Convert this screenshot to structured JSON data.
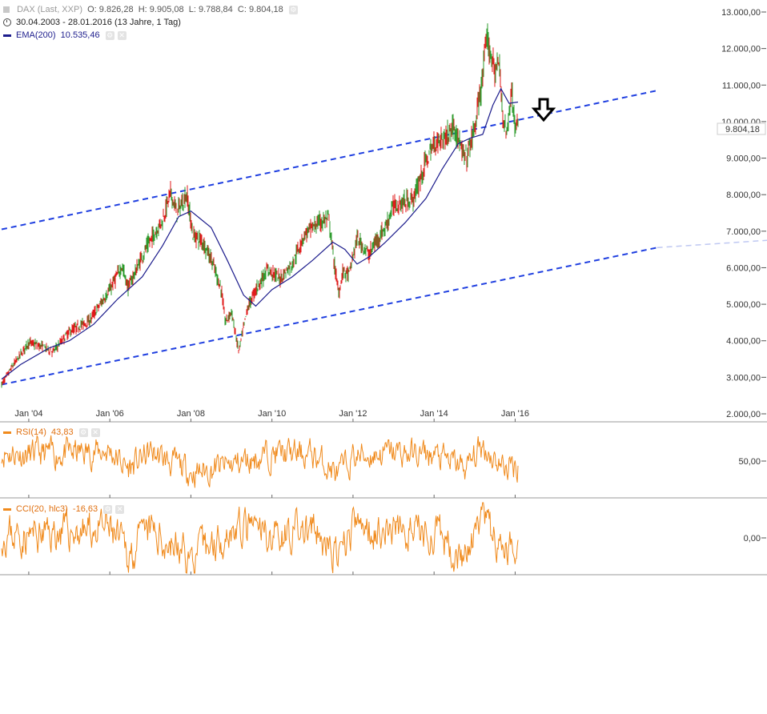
{
  "header": {
    "instrument": "DAX (Last, XXP)",
    "open": "O: 9.826,28",
    "high": "H: 9.905,08",
    "low": "L: 9.788,84",
    "close": "C: 9.804,18",
    "range": "30.04.2003 - 28.01.2016 (13 Jahre, 1 Tag)",
    "ema_label": "EMA(200)",
    "ema_value": "10.535,46",
    "rsi_label": "RSI(14)",
    "rsi_value": "43,83",
    "cci_label": "CCI(20, hlc3)",
    "cci_value": "-16,63",
    "last_price": "9.804,18"
  },
  "colors": {
    "ema": "#1c1c8c",
    "trend": "#1f3fe0",
    "up": "#2a9a2a",
    "down": "#e01818",
    "oscillator": "#f08a1c"
  },
  "chart_data": [
    {
      "type": "line",
      "panel": "price",
      "y_ticks": [
        "13.000,00",
        "12.000,00",
        "11.000,00",
        "10.000,00",
        "9.000,00",
        "8.000,00",
        "7.000,00",
        "6.000,00",
        "5.000,00",
        "4.000,00",
        "3.000,00",
        "2.000,00"
      ],
      "x_ticks": [
        "Jan '04",
        "Jan '06",
        "Jan '08",
        "Jan '10",
        "Jan '12",
        "Jan '14",
        "Jan '16"
      ],
      "ylim": [
        2000,
        13000
      ],
      "xlim": [
        2003.33,
        2020.91
      ],
      "series": [
        {
          "name": "DAX",
          "x": [
            2003.33,
            2003.6,
            2004.0,
            2004.3,
            2004.6,
            2005.0,
            2005.5,
            2006.0,
            2006.3,
            2006.45,
            2006.9,
            2007.3,
            2007.5,
            2007.65,
            2007.9,
            2008.05,
            2008.3,
            2008.5,
            2008.75,
            2008.85,
            2009.0,
            2009.18,
            2009.4,
            2009.6,
            2009.9,
            2010.2,
            2010.5,
            2010.8,
            2011.1,
            2011.4,
            2011.55,
            2011.65,
            2011.75,
            2011.9,
            2012.1,
            2012.4,
            2012.55,
            2012.8,
            2013.0,
            2013.3,
            2013.5,
            2013.8,
            2014.0,
            2014.3,
            2014.5,
            2014.7,
            2014.8,
            2015.0,
            2015.2,
            2015.3,
            2015.5,
            2015.6,
            2015.7,
            2015.8,
            2015.9,
            2016.0,
            2016.07
          ],
          "y": [
            2800,
            3300,
            3950,
            3850,
            3700,
            4250,
            4550,
            5400,
            6050,
            5450,
            6550,
            7300,
            8050,
            7500,
            8000,
            6900,
            6700,
            6250,
            5400,
            4500,
            4800,
            3700,
            4900,
            5400,
            5950,
            5700,
            6100,
            6900,
            7200,
            7350,
            6000,
            5300,
            5900,
            5800,
            6800,
            6350,
            6700,
            7100,
            7700,
            7800,
            7900,
            8900,
            9400,
            9600,
            9900,
            9100,
            9000,
            9800,
            11200,
            12300,
            11400,
            11600,
            10200,
            9600,
            10900,
            9900,
            9804
          ]
        },
        {
          "name": "EMA(200)",
          "x": [
            2003.33,
            2003.8,
            2004.5,
            2005.0,
            2005.6,
            2006.2,
            2006.8,
            2007.3,
            2007.7,
            2008.0,
            2008.5,
            2008.9,
            2009.3,
            2009.6,
            2010.0,
            2010.5,
            2011.0,
            2011.5,
            2011.8,
            2012.1,
            2012.4,
            2012.8,
            2013.3,
            2013.8,
            2014.2,
            2014.6,
            2014.9,
            2015.2,
            2015.45,
            2015.65,
            2015.85,
            2016.07
          ],
          "y": [
            2950,
            3350,
            3800,
            4000,
            4450,
            5150,
            5750,
            6600,
            7400,
            7550,
            7100,
            6200,
            5250,
            4950,
            5400,
            5750,
            6200,
            6700,
            6500,
            6100,
            6300,
            6700,
            7250,
            7900,
            8700,
            9400,
            9550,
            9650,
            10450,
            10900,
            10500,
            10535
          ]
        },
        {
          "name": "",
          "x": [
            2003.33,
            2019.5
          ],
          "y": [
            7050,
            10850
          ]
        },
        {
          "name": "",
          "x": [
            2003.33,
            2019.5
          ],
          "y": [
            2800,
            6550
          ]
        }
      ]
    },
    {
      "type": "line",
      "panel": "rsi",
      "y_ticks": [
        "50,00"
      ],
      "series": [
        {
          "name": "RSI(14)",
          "x": [
            2003.33,
            2004.0,
            2005.0,
            2006.0,
            2006.45,
            2007.0,
            2008.05,
            2009.0,
            2010.0,
            2011.0,
            2011.65,
            2012.0,
            2013.0,
            2014.0,
            2014.8,
            2015.2,
            2015.7,
            2016.07
          ],
          "y": [
            62,
            58,
            60,
            63,
            40,
            61,
            35,
            45,
            60,
            58,
            32,
            55,
            61,
            57,
            41,
            70,
            42,
            44
          ]
        }
      ]
    },
    {
      "type": "line",
      "panel": "cci",
      "y_ticks": [
        "0,00"
      ],
      "series": [
        {
          "name": "CCI(20, hlc3)",
          "x": [
            2003.33,
            2004.0,
            2005.0,
            2006.0,
            2006.45,
            2007.0,
            2008.05,
            2009.0,
            2010.0,
            2011.0,
            2011.65,
            2012.0,
            2013.0,
            2014.0,
            2014.8,
            2015.2,
            2015.7,
            2016.07
          ],
          "y": [
            40,
            20,
            50,
            70,
            -150,
            60,
            -180,
            80,
            40,
            60,
            -200,
            90,
            70,
            30,
            -180,
            160,
            -150,
            -17
          ]
        }
      ]
    }
  ]
}
